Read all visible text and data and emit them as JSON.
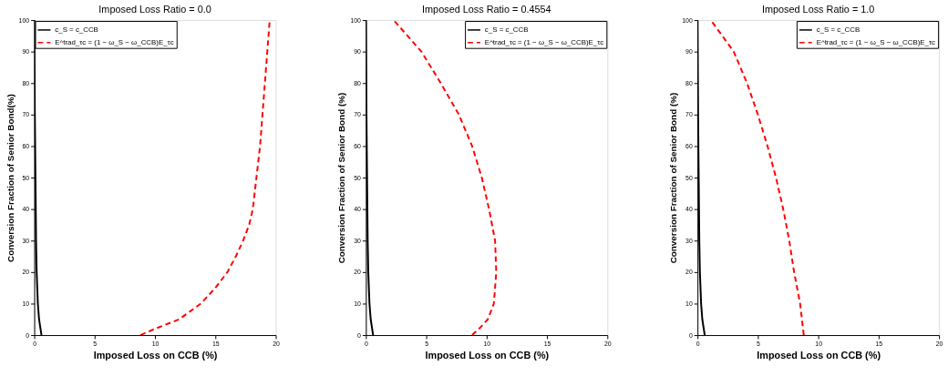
{
  "chart_data": [
    {
      "type": "line",
      "title": "Imposed Loss Ratio = 0.0",
      "xlabel": "Imposed Loss on CCB (%)",
      "ylabel": "Conversion Fraction of Senior Bond(%)",
      "xlim": [
        0,
        20
      ],
      "xticks": [
        0,
        5,
        10,
        15,
        20
      ],
      "ylim": [
        0,
        100
      ],
      "yticks": [
        0,
        10,
        20,
        30,
        40,
        50,
        60,
        70,
        80,
        90,
        100
      ],
      "grid": false,
      "legend": "top left",
      "series": [
        {
          "name": "c_S = c_CCB",
          "color": "#000000",
          "line_style": "solid",
          "x": [
            0.6,
            0.4,
            0.3,
            0.2,
            0.15,
            0.1,
            0.05,
            0
          ],
          "values": [
            0,
            5,
            10,
            20,
            30,
            50,
            70,
            100
          ]
        },
        {
          "name": "E^trad_τc = (1 − ω_S − ω_CCB)E_τc",
          "color": "#ff0000",
          "line_style": "dashed",
          "x": [
            8.8,
            10,
            12,
            13.8,
            15,
            16,
            16.7,
            17.3,
            17.8,
            18.1,
            18.4,
            18.7,
            18.9,
            19.1,
            19.3,
            19.5
          ],
          "values": [
            0,
            2,
            5,
            10,
            15,
            20,
            25,
            30,
            35,
            40,
            50,
            60,
            70,
            80,
            90,
            100
          ]
        }
      ]
    },
    {
      "type": "line",
      "title": "Imposed Loss Ratio = 0.4554",
      "xlabel": "Imposed Loss on CCB (%)",
      "ylabel": "Conversion Fraction of Senior Bond (%)",
      "xlim": [
        0,
        20
      ],
      "xticks": [
        0,
        5,
        10,
        15,
        20
      ],
      "ylim": [
        0,
        100
      ],
      "yticks": [
        0,
        10,
        20,
        30,
        40,
        50,
        60,
        70,
        80,
        90,
        100
      ],
      "grid": false,
      "legend": "top right",
      "series": [
        {
          "name": "c_S = c_CCB",
          "color": "#000000",
          "line_style": "solid",
          "x": [
            0.6,
            0.4,
            0.3,
            0.2,
            0.15,
            0.1,
            0.05,
            0
          ],
          "values": [
            0,
            5,
            10,
            20,
            30,
            50,
            70,
            100
          ]
        },
        {
          "name": "E^trad_τc = (1 − ω_S − ω_CCB)E_τc",
          "color": "#ff0000",
          "line_style": "dashed",
          "x": [
            8.8,
            9.5,
            10.1,
            10.6,
            10.8,
            10.7,
            10.2,
            9.6,
            8.8,
            7.7,
            6.2,
            4.6,
            2.3
          ],
          "values": [
            0,
            2.5,
            5,
            10,
            20,
            30,
            40,
            50,
            60,
            70,
            80,
            90,
            100
          ]
        }
      ]
    },
    {
      "type": "line",
      "title": "Imposed Loss Ratio = 1.0",
      "xlabel": "Imposed Loss on CCB (%)",
      "ylabel": "Conversion Fraction of Senior Bond (%)",
      "xlim": [
        0,
        20
      ],
      "xticks": [
        0,
        5,
        10,
        15,
        20
      ],
      "ylim": [
        0,
        100
      ],
      "yticks": [
        0,
        10,
        20,
        30,
        40,
        50,
        60,
        70,
        80,
        90,
        100
      ],
      "grid": false,
      "legend": "top right",
      "series": [
        {
          "name": "c_S = c_CCB",
          "color": "#000000",
          "line_style": "solid",
          "x": [
            0.6,
            0.4,
            0.3,
            0.2,
            0.15,
            0.1,
            0.05,
            0
          ],
          "values": [
            0,
            5,
            10,
            20,
            30,
            50,
            70,
            100
          ]
        },
        {
          "name": "E^trad_τc = (1 − ω_S − ω_CCB)E_τc",
          "color": "#ff0000",
          "line_style": "dashed",
          "x": [
            8.8,
            8.5,
            8.0,
            7.6,
            7.1,
            6.5,
            5.8,
            5.0,
            4.1,
            3.0,
            1.1
          ],
          "values": [
            0,
            10,
            20,
            30,
            40,
            50,
            60,
            70,
            80,
            90,
            100
          ]
        }
      ]
    }
  ]
}
